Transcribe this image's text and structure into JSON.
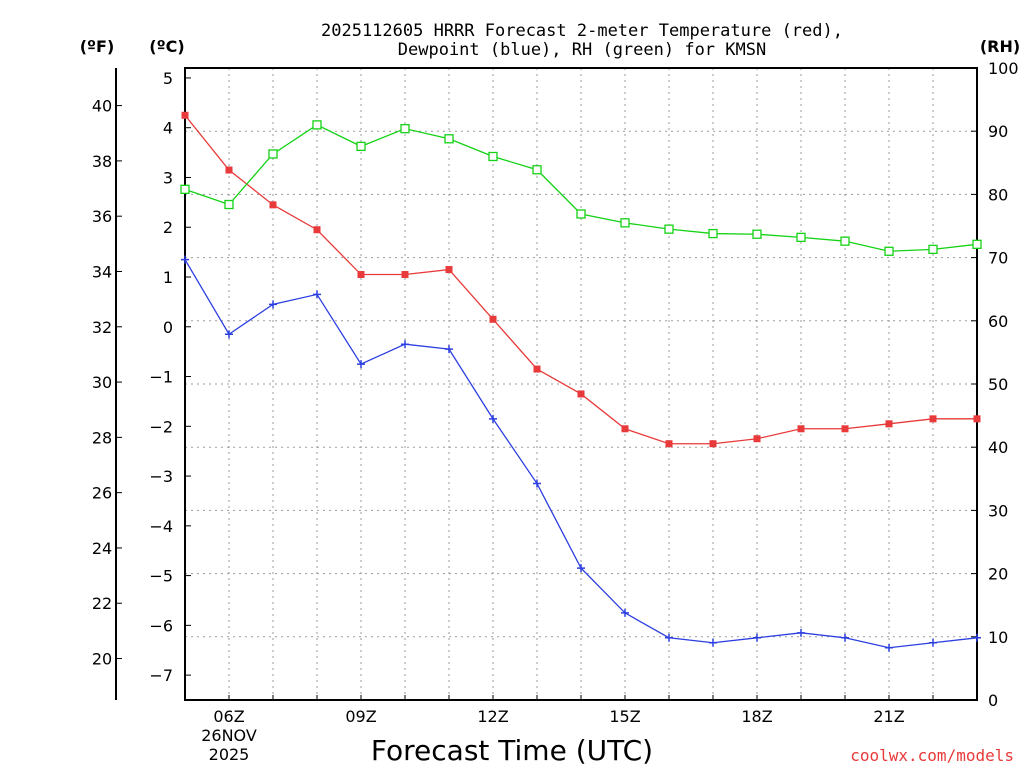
{
  "chart_data": {
    "type": "line",
    "title_line1": "2025112605 HRRR Forecast 2-meter Temperature (red),",
    "title_line2": "Dewpoint (blue), RH (green) for KMSN",
    "xlabel": "Forecast Time (UTC)",
    "credit": "coolwx.com/models",
    "unit_labels": {
      "fahrenheit": "(ºF)",
      "celsius": "(ºC)",
      "rh": "(RH)"
    },
    "x": [
      5,
      6,
      7,
      8,
      9,
      10,
      11,
      12,
      13,
      14,
      15,
      16,
      17,
      18,
      19,
      20,
      21,
      22,
      23
    ],
    "xlim": [
      5,
      23
    ],
    "x_ticks": [
      {
        "hour": 6,
        "label": "06Z",
        "sub1": "26NOV",
        "sub2": "2025"
      },
      {
        "hour": 9,
        "label": "09Z"
      },
      {
        "hour": 12,
        "label": "12Z"
      },
      {
        "hour": 15,
        "label": "15Z"
      },
      {
        "hour": 18,
        "label": "18Z"
      },
      {
        "hour": 21,
        "label": "21Z"
      }
    ],
    "celsius_axis": {
      "range": [
        -7.5,
        5.2
      ],
      "ticks": [
        5,
        4,
        3,
        2,
        1,
        0,
        -1,
        -2,
        -3,
        -4,
        -5,
        -6,
        -7
      ],
      "tick_labels": [
        "5",
        "4",
        "3",
        "2",
        "1",
        "0",
        "−1",
        "−2",
        "−3",
        "−4",
        "−5",
        "−6",
        "−7"
      ]
    },
    "fahrenheit_axis": {
      "range": [
        18.5,
        41.36
      ],
      "ticks": [
        40,
        38,
        36,
        34,
        32,
        30,
        28,
        26,
        24,
        22,
        20
      ],
      "tick_labels": [
        "40",
        "38",
        "36",
        "34",
        "32",
        "30",
        "28",
        "26",
        "24",
        "22",
        "20"
      ]
    },
    "rh_axis": {
      "range": [
        0,
        100
      ],
      "ticks": [
        100,
        90,
        80,
        70,
        60,
        50,
        40,
        30,
        20,
        10,
        0
      ],
      "tick_labels": [
        "100",
        "90",
        "80",
        "70",
        "60",
        "50",
        "40",
        "30",
        "20",
        "10",
        "0"
      ]
    },
    "series": [
      {
        "name": "Temperature",
        "axis": "celsius",
        "color": "#e83a3a",
        "marker": "square-filled",
        "values": [
          4.25,
          3.15,
          2.45,
          1.95,
          1.05,
          1.05,
          1.15,
          0.15,
          -0.85,
          -1.35,
          -2.05,
          -2.35,
          -2.35,
          -2.25,
          -2.05,
          -2.05,
          -1.95,
          -1.85,
          -1.85
        ]
      },
      {
        "name": "Dewpoint",
        "axis": "celsius",
        "color": "#2b3ee0",
        "marker": "plus",
        "values": [
          1.35,
          -0.15,
          0.45,
          0.65,
          -0.75,
          -0.35,
          -0.45,
          -1.85,
          -3.15,
          -4.85,
          -5.75,
          -6.25,
          -6.35,
          -6.25,
          -6.15,
          -6.25,
          -6.45,
          -6.35,
          -6.25
        ]
      },
      {
        "name": "RH",
        "axis": "rh",
        "color": "#14d214",
        "marker": "square-open",
        "values": [
          80.8,
          78.4,
          86.4,
          91.0,
          87.6,
          90.4,
          88.8,
          86.0,
          83.9,
          76.9,
          75.5,
          74.5,
          73.8,
          73.7,
          73.2,
          72.6,
          71.0,
          71.3,
          72.1
        ]
      }
    ]
  }
}
